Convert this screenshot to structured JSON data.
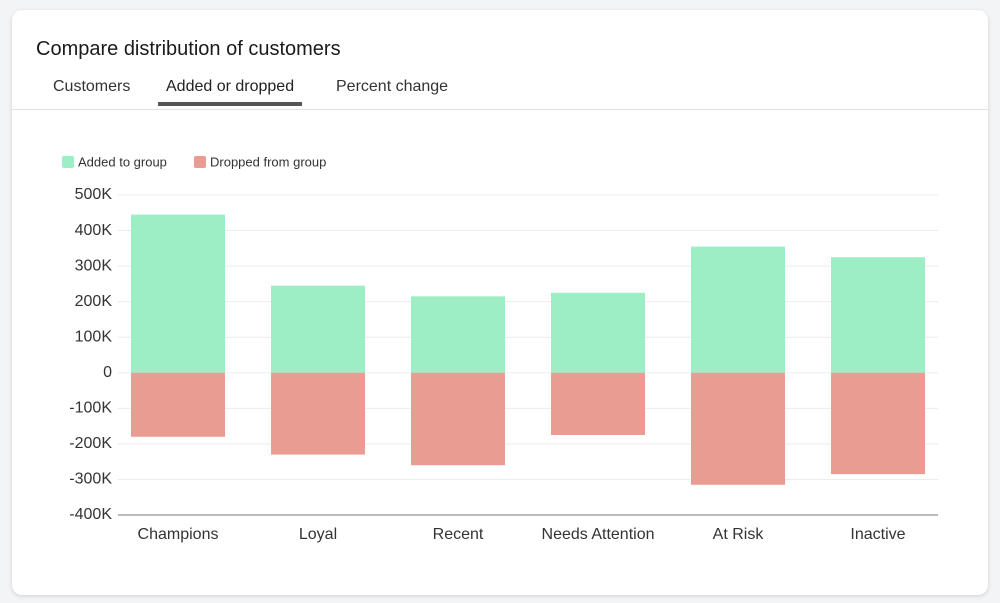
{
  "header": {
    "title": "Compare distribution of customers"
  },
  "tabs": [
    "Customers",
    "Added or dropped",
    "Percent change"
  ],
  "chart_data": {
    "type": "bar",
    "stacked": true,
    "categories": [
      "Champions",
      "Loyal",
      "Recent",
      "Needs Attention",
      "At Risk",
      "Inactive"
    ],
    "series": [
      {
        "name": "Added to group",
        "color": "#9dedc5",
        "values": [
          445000,
          245000,
          215000,
          225000,
          355000,
          325000
        ]
      },
      {
        "name": "Dropped from group",
        "color": "#e89c92",
        "values": [
          -180000,
          -230000,
          -260000,
          -175000,
          -315000,
          -285000
        ]
      }
    ],
    "ylim": [
      -400000,
      500000
    ],
    "yticks": [
      {
        "value": -400000,
        "label": "-400K"
      },
      {
        "value": -300000,
        "label": "-300K"
      },
      {
        "value": -200000,
        "label": "-200K"
      },
      {
        "value": -100000,
        "label": "-100K"
      },
      0,
      {
        "value": 100000,
        "label": "100K"
      },
      {
        "value": 200000,
        "label": "200K"
      },
      {
        "value": 300000,
        "label": "300K"
      },
      {
        "value": 400000,
        "label": "400K"
      },
      {
        "value": 500000,
        "label": "500K"
      }
    ],
    "grid": true,
    "legend": "top-left"
  }
}
